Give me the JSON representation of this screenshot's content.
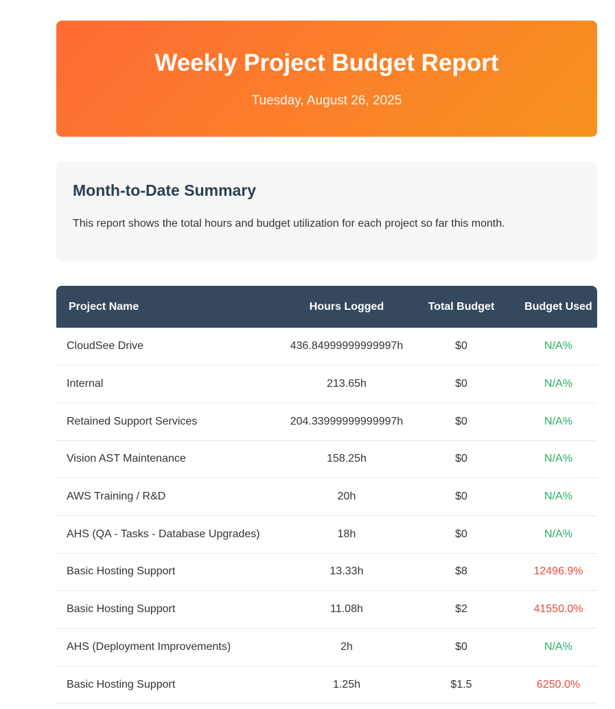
{
  "header": {
    "title": "Weekly Project Budget Report",
    "date": "Tuesday, August 26, 2025"
  },
  "summary": {
    "heading": "Month-to-Date Summary",
    "text": "This report shows the total hours and budget utilization for each project so far this month."
  },
  "table": {
    "columns": [
      "Project Name",
      "Hours Logged",
      "Total Budget",
      "Budget Used"
    ],
    "rows": [
      {
        "name": "CloudSee Drive",
        "hours": "436.84999999999997h",
        "budget": "$0",
        "used": "N/A%",
        "status": "ok"
      },
      {
        "name": "Internal",
        "hours": "213.65h",
        "budget": "$0",
        "used": "N/A%",
        "status": "ok"
      },
      {
        "name": "Retained Support Services",
        "hours": "204.33999999999997h",
        "budget": "$0",
        "used": "N/A%",
        "status": "ok"
      },
      {
        "name": "Vision AST Maintenance",
        "hours": "158.25h",
        "budget": "$0",
        "used": "N/A%",
        "status": "ok"
      },
      {
        "name": "AWS Training / R&D",
        "hours": "20h",
        "budget": "$0",
        "used": "N/A%",
        "status": "ok"
      },
      {
        "name": "AHS (QA - Tasks - Database Upgrades)",
        "hours": "18h",
        "budget": "$0",
        "used": "N/A%",
        "status": "ok"
      },
      {
        "name": "Basic Hosting Support",
        "hours": "13.33h",
        "budget": "$8",
        "used": "12496.9%",
        "status": "over"
      },
      {
        "name": "Basic Hosting Support",
        "hours": "11.08h",
        "budget": "$2",
        "used": "41550.0%",
        "status": "over"
      },
      {
        "name": "AHS (Deployment Improvements)",
        "hours": "2h",
        "budget": "$0",
        "used": "N/A%",
        "status": "ok"
      },
      {
        "name": "Basic Hosting Support",
        "hours": "1.25h",
        "budget": "$1.5",
        "used": "6250.0%",
        "status": "over"
      }
    ]
  },
  "colors": {
    "header_gradient_start": "#ff6b35",
    "header_gradient_end": "#f7931e",
    "table_header_bg": "#34495e",
    "ok": "#27ae60",
    "over": "#e74c3c"
  }
}
